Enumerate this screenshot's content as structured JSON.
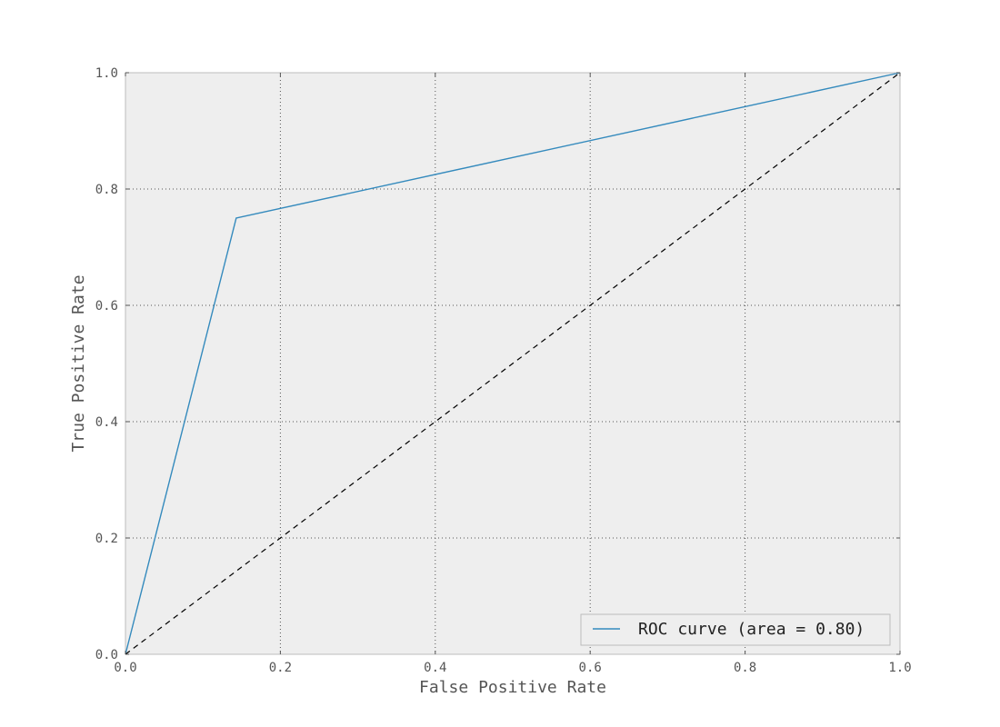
{
  "chart_data": {
    "type": "line",
    "title": "",
    "xlabel": "False Positive Rate",
    "ylabel": "True Positive Rate",
    "xlim": [
      0.0,
      1.0
    ],
    "ylim": [
      0.0,
      1.0
    ],
    "xticks": [
      "0.0",
      "0.2",
      "0.4",
      "0.6",
      "0.8",
      "1.0"
    ],
    "yticks": [
      "0.0",
      "0.2",
      "0.4",
      "0.6",
      "0.8",
      "1.0"
    ],
    "grid": true,
    "legend_position": "lower-right",
    "series": [
      {
        "name": "ROC curve (area = 0.80)",
        "color": "#348ABD",
        "style": "solid",
        "x": [
          0.0,
          0.143,
          1.0
        ],
        "y": [
          0.0,
          0.75,
          1.0
        ]
      },
      {
        "color": "#000000",
        "style": "dashed",
        "x": [
          0.0,
          1.0
        ],
        "y": [
          0.0,
          1.0
        ]
      }
    ],
    "colors": {
      "plot_background": "#EEEEEE",
      "frame": "#BCBCBC",
      "grid": "#555555"
    }
  }
}
